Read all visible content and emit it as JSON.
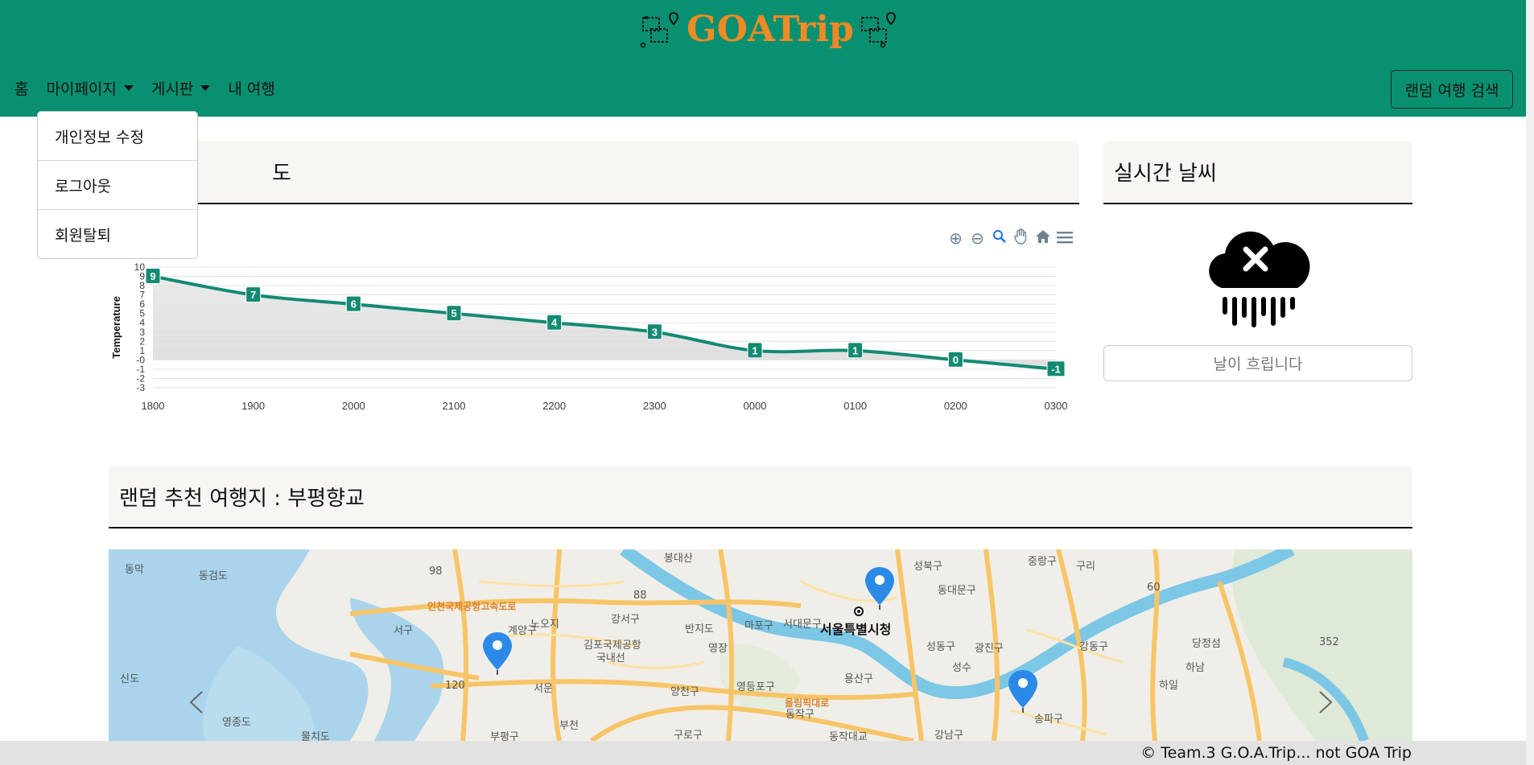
{
  "brand": {
    "name": "GOATrip",
    "color": "#f08a24",
    "header_color": "#089070"
  },
  "nav": {
    "home": "홈",
    "mypage": "마이페이지",
    "board": "게시판",
    "mytrip": "내 여행",
    "random_search": "랜덤 여행 검색"
  },
  "dropdown": {
    "items": [
      "개인정보 수정",
      "로그아웃",
      "회원탈퇴"
    ]
  },
  "temperature_card": {
    "title_fragment": "도"
  },
  "weather_card": {
    "title": "실시간 날씨",
    "status": "날이 흐립니다",
    "icon": "cloud-rain-x-icon"
  },
  "random_card": {
    "title": "랜덤 추천 여행지 : 부평향교"
  },
  "chart_toolbar": {
    "icons": [
      "zoom-in-icon",
      "zoom-out-icon",
      "zoom-select-icon",
      "pan-icon",
      "reset-home-icon",
      "menu-icon"
    ]
  },
  "chart_data": {
    "type": "line",
    "categories": [
      "1800",
      "1900",
      "2000",
      "2100",
      "2200",
      "2300",
      "0000",
      "0100",
      "0200",
      "0300"
    ],
    "series": [
      {
        "values": [
          9,
          7,
          6,
          5,
          4,
          3,
          1,
          1,
          0,
          -1
        ]
      }
    ],
    "ylabel": "Temperature",
    "y_ticks": [
      "10",
      "9",
      "8",
      "7",
      "6",
      "5",
      "4",
      "3",
      "2",
      "1",
      "-0",
      "-1",
      "-2",
      "-3"
    ],
    "ylim": [
      -3,
      10
    ],
    "grid": true,
    "line_color": "#138a72"
  },
  "map": {
    "labels": [
      {
        "text": "동막",
        "cls": ""
      },
      {
        "text": "동검도",
        "cls": ""
      },
      {
        "text": "봉대산",
        "cls": ""
      },
      {
        "text": "성북구",
        "cls": ""
      },
      {
        "text": "중랑구",
        "cls": ""
      },
      {
        "text": "구리",
        "cls": ""
      },
      {
        "text": "인천국제공항고속도로",
        "cls": "orange"
      },
      {
        "text": "서구",
        "cls": ""
      },
      {
        "text": "노오지",
        "cls": ""
      },
      {
        "text": "강서구",
        "cls": ""
      },
      {
        "text": "반지도",
        "cls": ""
      },
      {
        "text": "서대문구",
        "cls": ""
      },
      {
        "text": "동대문구",
        "cls": ""
      },
      {
        "text": "김포국제공항",
        "cls": ""
      },
      {
        "text": "국내선",
        "cls": ""
      },
      {
        "text": "마포구",
        "cls": ""
      },
      {
        "text": "서울특별시청",
        "cls": "big"
      },
      {
        "text": "성동구",
        "cls": ""
      },
      {
        "text": "광진구",
        "cls": ""
      },
      {
        "text": "강동구",
        "cls": ""
      },
      {
        "text": "당정섬",
        "cls": ""
      },
      {
        "text": "계양구",
        "cls": ""
      },
      {
        "text": "영장",
        "cls": ""
      },
      {
        "text": "용산구",
        "cls": ""
      },
      {
        "text": "성수",
        "cls": ""
      },
      {
        "text": "하남",
        "cls": ""
      },
      {
        "text": "신도",
        "cls": ""
      },
      {
        "text": "서운",
        "cls": ""
      },
      {
        "text": "양천구",
        "cls": ""
      },
      {
        "text": "영등포구",
        "cls": ""
      },
      {
        "text": "올림픽대로",
        "cls": "orange"
      },
      {
        "text": "하일",
        "cls": ""
      },
      {
        "text": "영종도",
        "cls": ""
      },
      {
        "text": "물치도",
        "cls": ""
      },
      {
        "text": "부평구",
        "cls": ""
      },
      {
        "text": "부천",
        "cls": ""
      },
      {
        "text": "구로구",
        "cls": ""
      },
      {
        "text": "동작구",
        "cls": ""
      },
      {
        "text": "동작대교",
        "cls": ""
      },
      {
        "text": "강남구",
        "cls": ""
      },
      {
        "text": "송파구",
        "cls": ""
      },
      {
        "text": "98",
        "cls": ""
      },
      {
        "text": "88",
        "cls": ""
      },
      {
        "text": "120",
        "cls": ""
      },
      {
        "text": "60",
        "cls": ""
      },
      {
        "text": "352",
        "cls": ""
      }
    ]
  },
  "footer": {
    "text": "© Team.3 G.O.A.Trip... not GOA Trip"
  }
}
